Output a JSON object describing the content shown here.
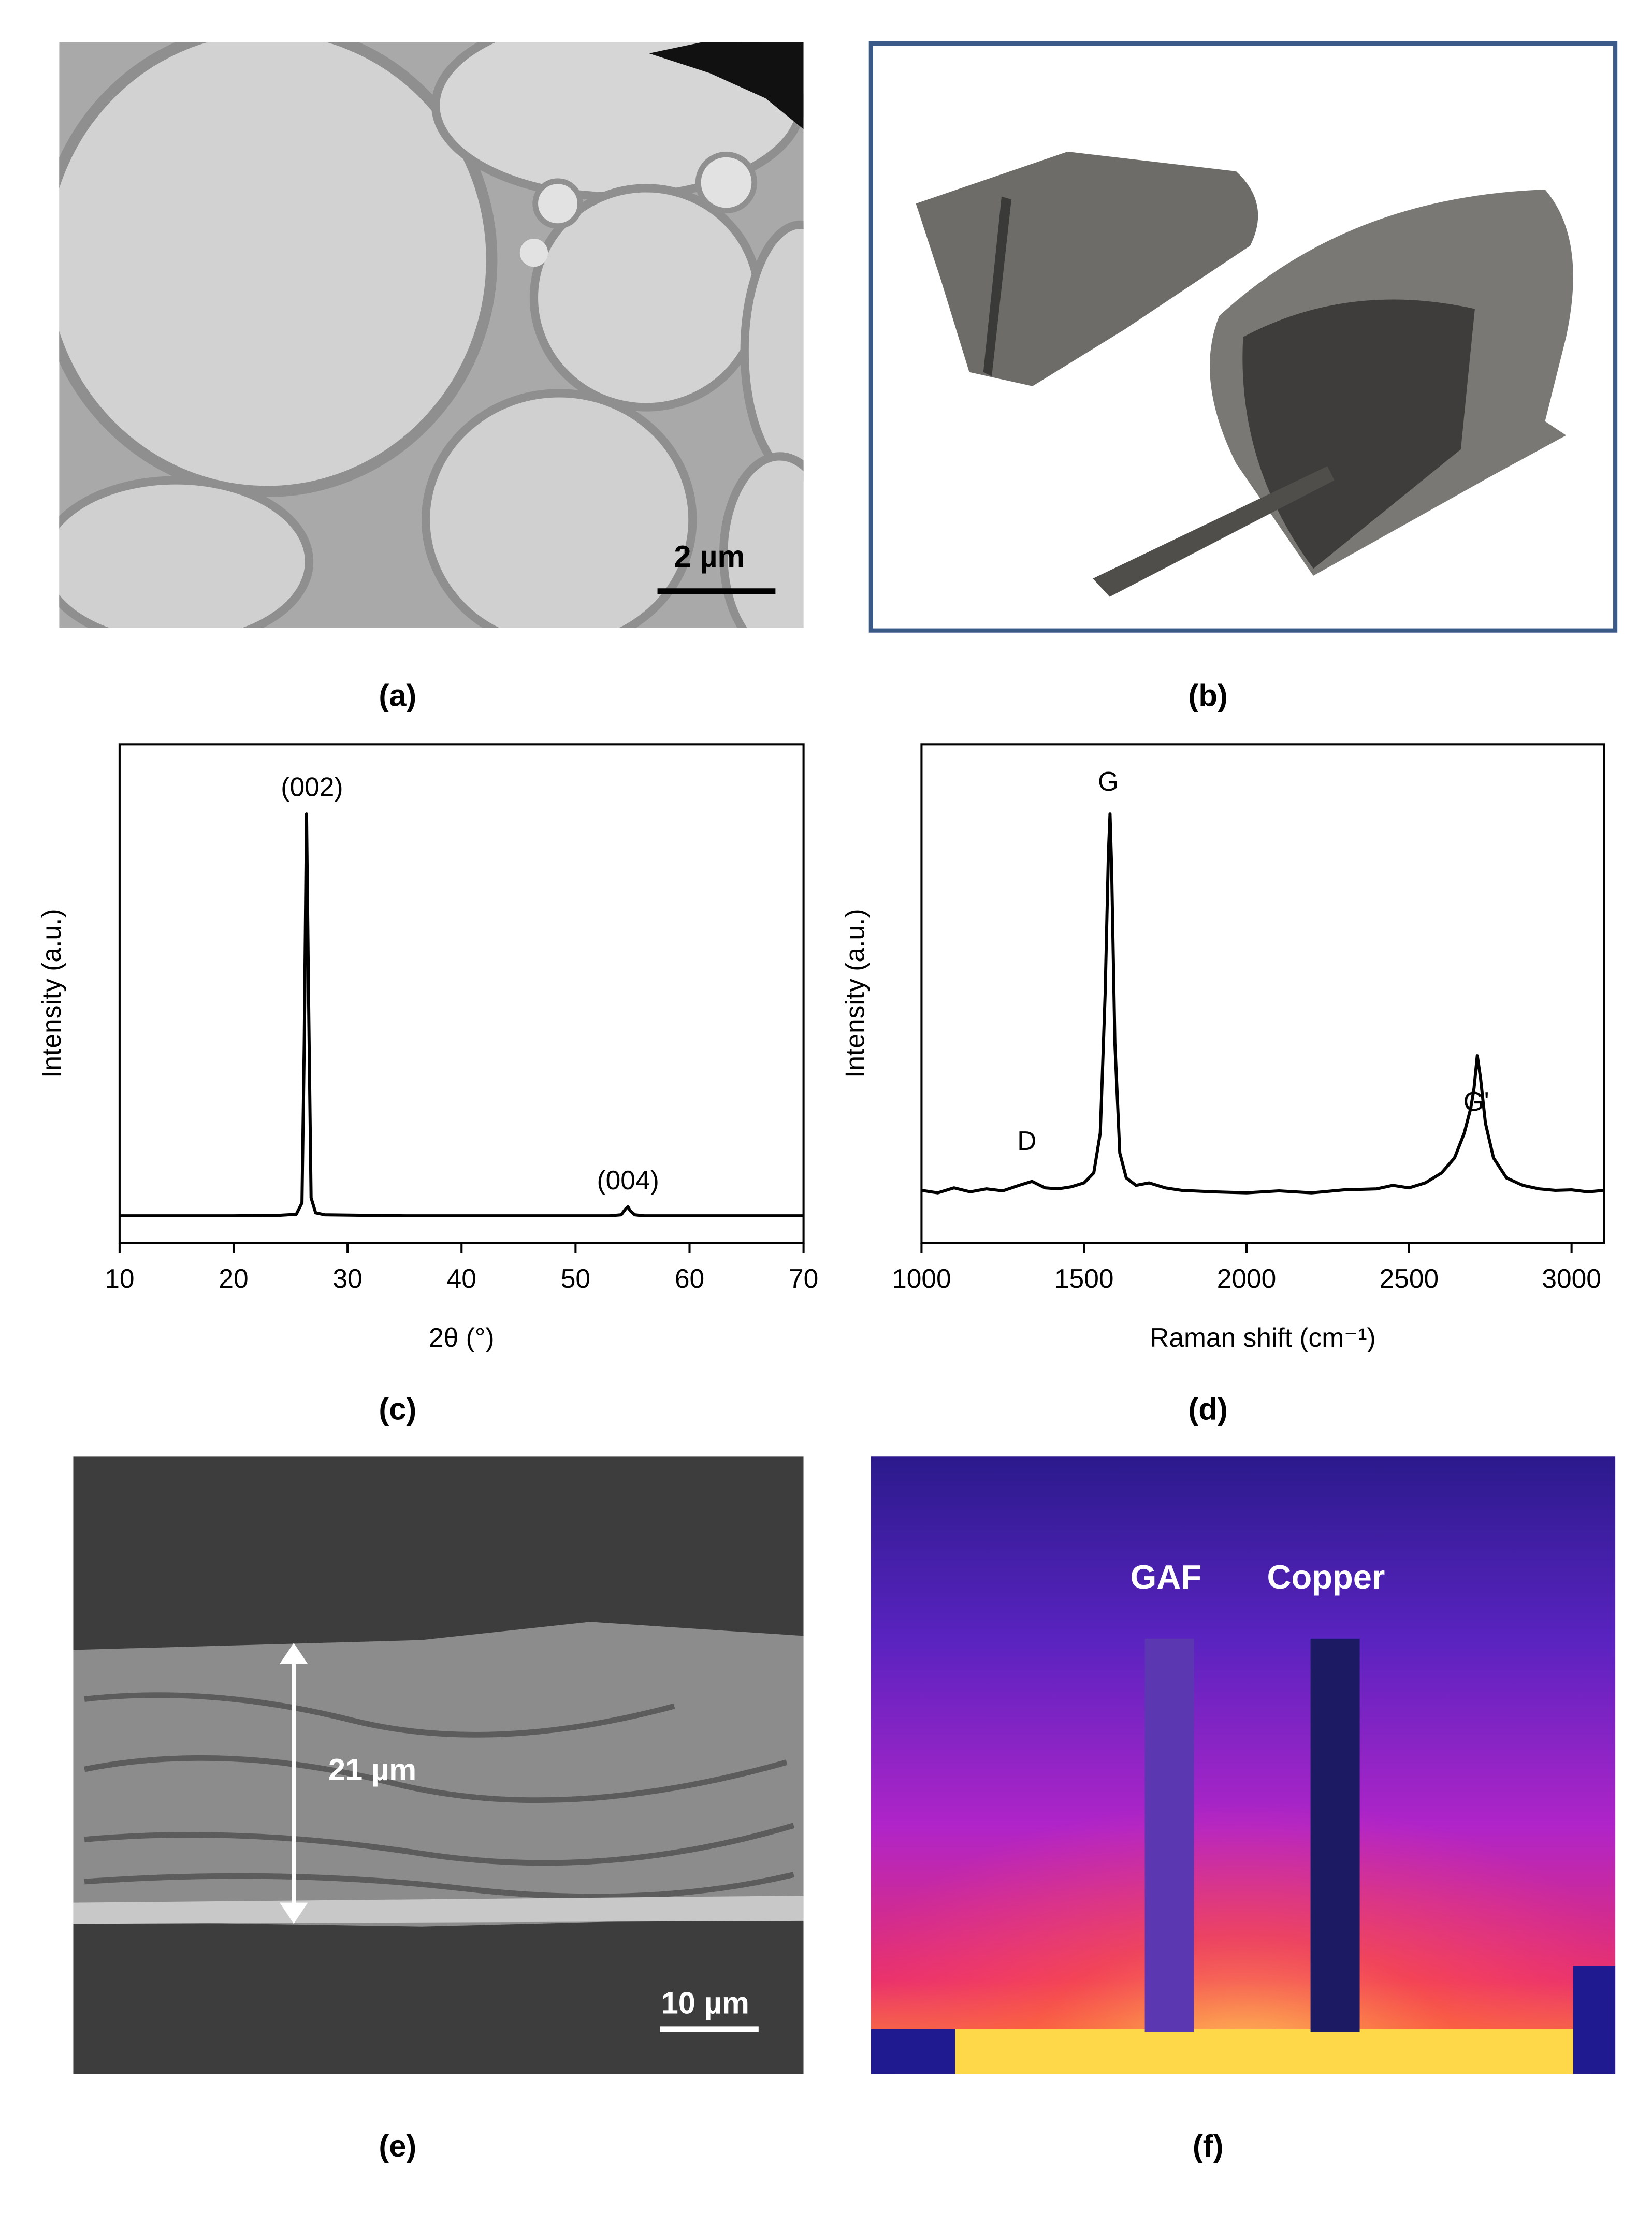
{
  "panels": {
    "a": {
      "label": "(a)",
      "scale_bar": "2 µm"
    },
    "b": {
      "label": "(b)"
    },
    "e": {
      "label": "(e)",
      "thickness": "21 µm",
      "scale_bar": "10 µm"
    },
    "f": {
      "label": "(f)",
      "samples": [
        "GAF",
        "Copper"
      ]
    }
  },
  "chart_data": [
    {
      "type": "line",
      "panel_label": "(c)",
      "xlabel": "2θ (°)",
      "ylabel": "Intensity (a.u.)",
      "x": [
        10,
        15,
        20,
        24,
        25.5,
        26,
        26.2,
        26.4,
        26.6,
        26.8,
        27.2,
        28,
        35,
        45,
        53,
        54,
        54.4,
        54.6,
        54.8,
        55.2,
        56,
        65,
        70
      ],
      "series": [
        {
          "color": "#000000",
          "values": [
            5.4,
            5.4,
            5.4,
            5.5,
            5.7,
            8,
            40,
            86,
            45,
            9,
            6,
            5.6,
            5.4,
            5.4,
            5.4,
            5.6,
            6.8,
            7.2,
            6.4,
            5.6,
            5.4,
            5.4,
            5.4
          ]
        }
      ],
      "xlim": [
        10,
        70
      ],
      "ylim": [
        0,
        100
      ],
      "xticks": [
        10,
        20,
        30,
        40,
        50,
        60,
        70
      ],
      "annotations": [
        "(002)",
        "(004)"
      ]
    },
    {
      "type": "line",
      "panel_label": "(d)",
      "xlabel": "Raman shift (cm⁻¹)",
      "ylabel": "Intensity (a.u.)",
      "x": [
        1000,
        1050,
        1100,
        1150,
        1200,
        1250,
        1300,
        1340,
        1380,
        1420,
        1460,
        1500,
        1530,
        1550,
        1565,
        1575,
        1580,
        1585,
        1595,
        1610,
        1630,
        1660,
        1700,
        1750,
        1800,
        1900,
        2000,
        2100,
        2200,
        2300,
        2400,
        2450,
        2500,
        2550,
        2600,
        2640,
        2670,
        2690,
        2700,
        2710,
        2720,
        2735,
        2760,
        2800,
        2850,
        2900,
        2950,
        3000,
        3050,
        3100
      ],
      "series": [
        {
          "color": "#000000",
          "values": [
            10.5,
            10,
            11,
            10.2,
            10.8,
            10.4,
            11.5,
            12.3,
            11,
            10.8,
            11.2,
            12,
            14,
            22,
            50,
            78,
            86,
            75,
            40,
            18,
            13,
            11.5,
            12,
            11,
            10.5,
            10.2,
            10,
            10.4,
            10,
            10.6,
            10.8,
            11.5,
            11,
            12,
            14,
            17,
            22,
            27,
            31,
            37.5,
            33,
            24,
            17,
            13,
            11.5,
            10.8,
            10.5,
            10.6,
            10.2,
            10.5
          ]
        }
      ],
      "xlim": [
        1000,
        3100
      ],
      "ylim": [
        0,
        100
      ],
      "xticks": [
        1000,
        1500,
        2000,
        2500,
        3000
      ],
      "annotations": [
        "D",
        "G",
        "G'"
      ]
    }
  ]
}
